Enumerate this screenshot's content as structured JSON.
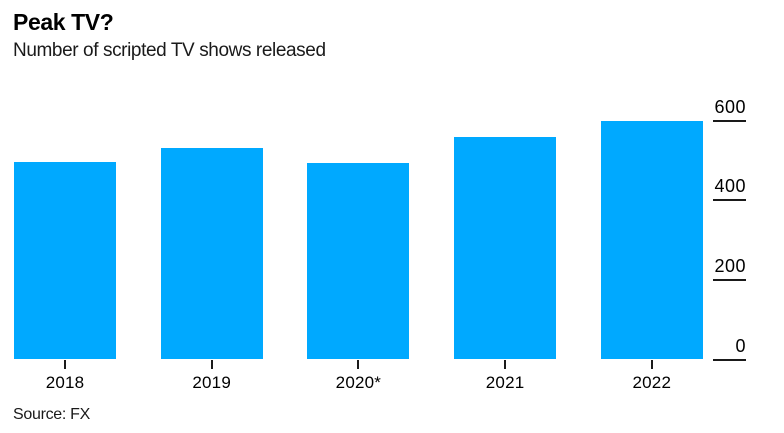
{
  "chart_data": {
    "type": "bar",
    "title": "Peak TV?",
    "subtitle": "Number of scripted TV shows released",
    "source": "Source: FX",
    "categories": [
      "2018",
      "2019",
      "2020*",
      "2021",
      "2022"
    ],
    "values": [
      495,
      532,
      493,
      559,
      599
    ],
    "xlabel": "",
    "ylabel": "",
    "ylim": [
      0,
      600
    ],
    "yticks": [
      0,
      200,
      400,
      600
    ],
    "ytick_labels": [
      "0",
      "200",
      "400",
      "600"
    ],
    "axis_side": "right",
    "grid": "tick dashes beside right axis labels only, no gridlines across plot",
    "legend": "none",
    "bar_color": "#00A9FF",
    "axis_color": "#1a1a1a",
    "text_color": "#000000",
    "background_color": "#ffffff"
  }
}
